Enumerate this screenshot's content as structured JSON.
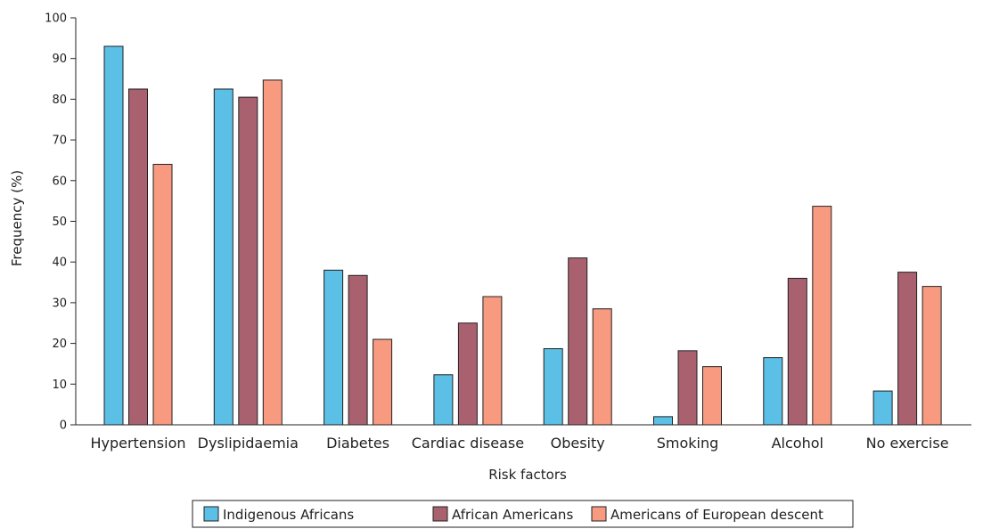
{
  "chart_data": {
    "type": "bar",
    "title": "",
    "xlabel": "Risk factors",
    "ylabel": "Frequency (%)",
    "ylim": [
      0,
      100
    ],
    "yticks": [
      "0",
      "10",
      "20",
      "30",
      "40",
      "50",
      "60",
      "70",
      "80",
      "90",
      "100"
    ],
    "grid": false,
    "legend_position": "bottom",
    "categories": [
      "Hypertension",
      "Dyslipidaemia",
      "Diabetes",
      "Cardiac disease",
      "Obesity",
      "Smoking",
      "Alcohol",
      "No exercise"
    ],
    "series": [
      {
        "name": "Indigenous Africans",
        "color": "#5bbfe6",
        "values": [
          93,
          82.5,
          38,
          12.3,
          18.7,
          2,
          16.5,
          8.3
        ]
      },
      {
        "name": "African Americans",
        "color": "#a9616f",
        "values": [
          82.5,
          80.5,
          36.7,
          25,
          41,
          18.2,
          36,
          37.5
        ]
      },
      {
        "name": "Americans of European descent",
        "color": "#f79a80",
        "values": [
          64,
          84.7,
          21,
          31.5,
          28.5,
          14.3,
          53.7,
          34
        ]
      }
    ]
  }
}
